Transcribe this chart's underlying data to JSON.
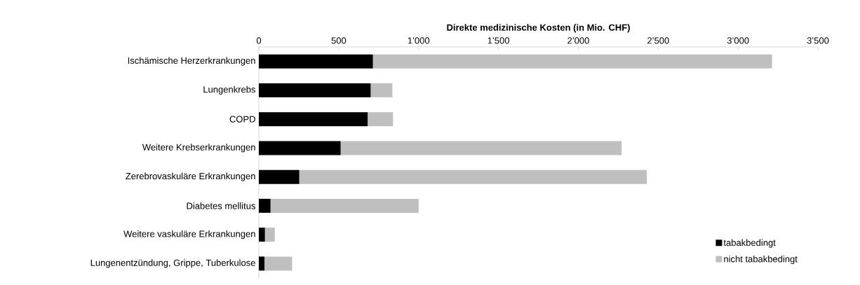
{
  "chart_data": {
    "type": "bar",
    "orientation": "horizontal",
    "stacked": true,
    "xlabel": "Direkte medizinische Kosten (in Mio. CHF)",
    "categories": [
      "Ischämische Herzerkrankungen",
      "Lungenkrebs",
      "COPD",
      "Weitere Krebserkrankungen",
      "Zerebrovaskuläre Erkrankungen",
      "Diabetes mellitus",
      "Weitere vaskuläre Erkrankungen",
      "Lungenentzündung, Grippe, Tuberkulose"
    ],
    "series": [
      {
        "name": "tabakbedingt",
        "color": "#000000",
        "values": [
          714,
          700,
          681,
          512,
          253,
          73,
          38,
          35
        ]
      },
      {
        "name": "nicht tabakbedingt",
        "color": "#bfbfbf",
        "values": [
          2499,
          136,
          159,
          1759,
          2176,
          927,
          62,
          173
        ]
      }
    ],
    "xlim": [
      0,
      3500
    ],
    "xticks": [
      0,
      500,
      {
        "value": 1000,
        "label": "1’000"
      },
      {
        "value": 1500,
        "label": "1’500"
      },
      {
        "value": 2000,
        "label": "2’000"
      },
      {
        "value": 2500,
        "label": "2’500"
      },
      {
        "value": 3000,
        "label": "3’000"
      },
      {
        "value": 3500,
        "label": "3’500"
      }
    ],
    "grid": false,
    "legend": "bottom right"
  }
}
